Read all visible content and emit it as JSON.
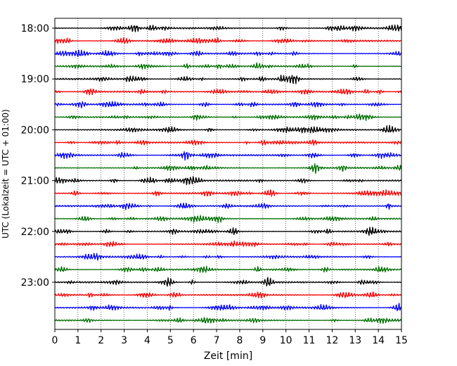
{
  "chart_data": {
    "type": "line",
    "title": "",
    "xlabel": "Zeit  [min]",
    "ylabel": "UTC (Lokalzeit = UTC + 01:00)",
    "xlim": [
      0,
      15
    ],
    "x_ticks": [
      "0",
      "1",
      "2",
      "3",
      "4",
      "5",
      "6",
      "7",
      "8",
      "9",
      "10",
      "11",
      "12",
      "13",
      "14",
      "15"
    ],
    "y_tick_labels": [
      "18:00",
      "19:00",
      "20:00",
      "21:00",
      "22:00",
      "23:00"
    ],
    "y_tick_trace_index": [
      0,
      4,
      8,
      12,
      16,
      20
    ],
    "grid": "vertical dotted",
    "trace_interval_min": 15,
    "start_time": "18:00",
    "trace_colors": [
      "#000000",
      "#ff0000",
      "#0000ff",
      "#007000"
    ],
    "trace_count": 24
  }
}
